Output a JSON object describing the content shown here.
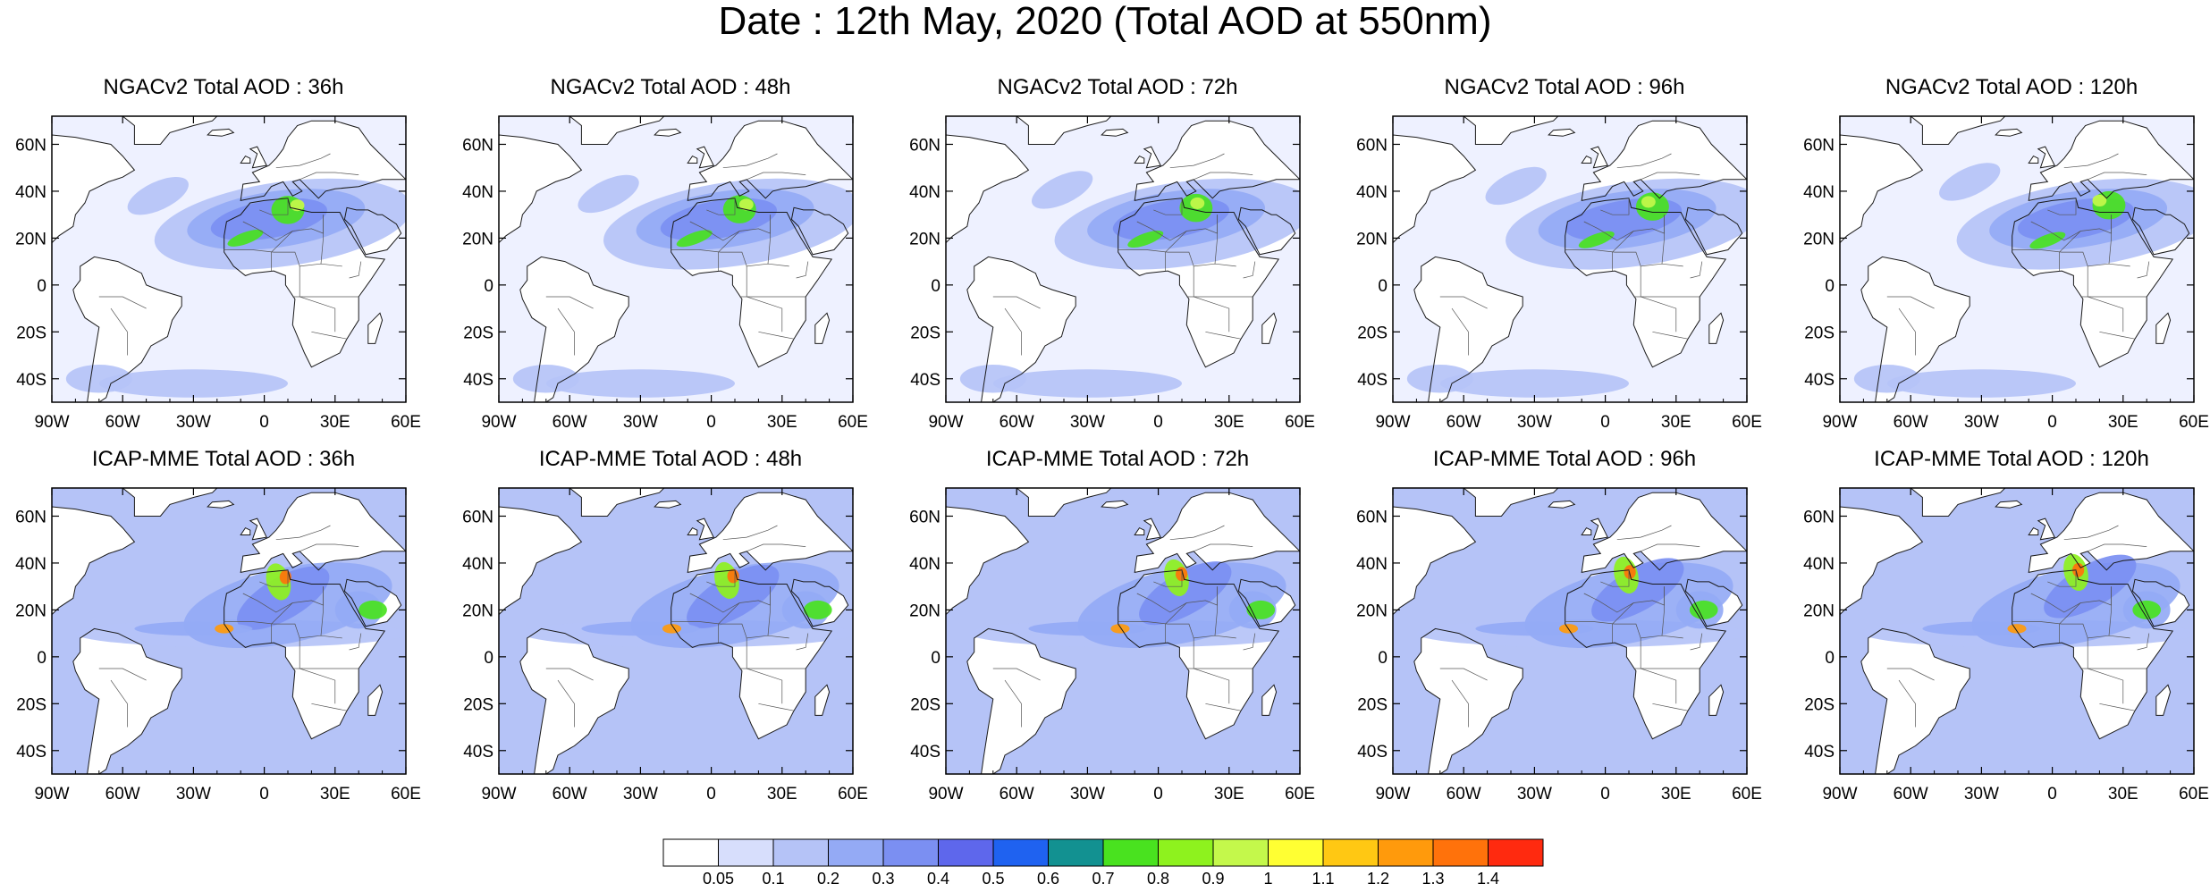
{
  "title": "Date : 12th May, 2020 (Total AOD at 550nm)",
  "axes": {
    "lon_ticks": [
      "90W",
      "60W",
      "30W",
      "0",
      "30E",
      "60E"
    ],
    "lat_ticks": [
      "60N",
      "40N",
      "20N",
      "0",
      "20S",
      "40S"
    ]
  },
  "panels": [
    {
      "title": "NGACv2 Total AOD : 36h",
      "model": "ngac",
      "lead": 36
    },
    {
      "title": "NGACv2 Total AOD : 48h",
      "model": "ngac",
      "lead": 48
    },
    {
      "title": "NGACv2 Total AOD : 72h",
      "model": "ngac",
      "lead": 72
    },
    {
      "title": "NGACv2 Total AOD : 96h",
      "model": "ngac",
      "lead": 96
    },
    {
      "title": "NGACv2 Total AOD : 120h",
      "model": "ngac",
      "lead": 120
    },
    {
      "title": "ICAP-MME Total AOD : 36h",
      "model": "icap",
      "lead": 36
    },
    {
      "title": "ICAP-MME Total AOD : 48h",
      "model": "icap",
      "lead": 48
    },
    {
      "title": "ICAP-MME Total AOD : 72h",
      "model": "icap",
      "lead": 72
    },
    {
      "title": "ICAP-MME Total AOD : 96h",
      "model": "icap",
      "lead": 96
    },
    {
      "title": "ICAP-MME Total AOD : 120h",
      "model": "icap",
      "lead": 120
    }
  ],
  "colorbar": {
    "labels": [
      "0.05",
      "0.1",
      "0.2",
      "0.3",
      "0.4",
      "0.5",
      "0.6",
      "0.7",
      "0.8",
      "0.9",
      "1",
      "1.1",
      "1.2",
      "1.3",
      "1.4"
    ],
    "colors": [
      "#ffffff",
      "#d7defc",
      "#b5c3f7",
      "#94aaf5",
      "#7b8ff2",
      "#5e67ec",
      "#1f62f0",
      "#129191",
      "#49e21f",
      "#8ef21e",
      "#c4f84b",
      "#ffff33",
      "#ffc813",
      "#ff9a0c",
      "#ff720b",
      "#ff2a0f"
    ]
  },
  "basemap_colors": {
    "land": "#ffffff",
    "background": "#eef1ff",
    "ocean_ngac": "#ffffff",
    "ocean_icap": "#b5c3f7",
    "coast": "#1a1a1a",
    "border": "#555555"
  }
}
